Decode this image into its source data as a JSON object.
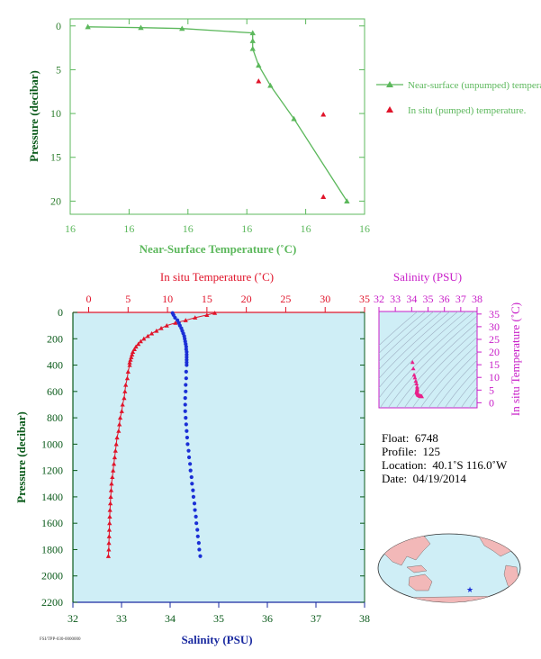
{
  "colors": {
    "green": "#5cb85c",
    "green_dark": "#2f7f2f",
    "red": "#e0142a",
    "blue": "#1a2fd6",
    "magenta": "#c81ec8",
    "pink": "#e8208a",
    "axis_green": "#0a5a1a",
    "axis_blue": "#1a2aa0",
    "panel_bg": "#cfeef6",
    "land": "#f2b8b8",
    "ocean": "#cfeef6"
  },
  "chart_data": [
    {
      "id": "near_surface",
      "type": "line",
      "xlabel": "Near-Surface Temperature (˚C)",
      "ylabel": "Pressure (decibar)",
      "x_tick_labels": [
        "16",
        "16",
        "16",
        "16",
        "16",
        "16"
      ],
      "x_tick_values": [
        16.0,
        16.1,
        16.2,
        16.3,
        16.4,
        16.5
      ],
      "xlim": [
        16.0,
        16.5
      ],
      "y_ticks": [
        0,
        5,
        10,
        15,
        20
      ],
      "ylim": [
        21.5,
        -0.8
      ],
      "y_inverted": true,
      "grid": false,
      "legend_position": "right",
      "series": [
        {
          "name": "Near-surface (unpumped) temperature.",
          "marker": "triangle",
          "x": [
            16.03,
            16.12,
            16.19,
            16.31,
            16.31,
            16.31,
            16.32,
            16.34,
            16.38,
            16.47
          ],
          "y": [
            0.1,
            0.2,
            0.3,
            0.8,
            1.7,
            2.6,
            4.5,
            6.8,
            10.6,
            20.0
          ]
        },
        {
          "name": "In situ (pumped) temperature.",
          "marker": "triangle-points",
          "x": [
            16.32,
            16.43,
            16.43
          ],
          "y": [
            6.3,
            10.1,
            19.5
          ]
        }
      ]
    },
    {
      "id": "profile",
      "type": "line",
      "x2label": "In situ Temperature (˚C)",
      "xlabel": "Salinity (PSU)",
      "ylabel": "Pressure (decibar)",
      "temp_ticks": [
        0,
        5,
        10,
        15,
        20,
        25,
        30,
        35
      ],
      "temp_lim": [
        -2,
        35
      ],
      "sal_ticks": [
        32,
        33,
        34,
        35,
        36,
        37,
        38
      ],
      "sal_lim": [
        32,
        38
      ],
      "y_ticks": [
        0,
        200,
        400,
        600,
        800,
        1000,
        1200,
        1400,
        1600,
        1800,
        2000,
        2200
      ],
      "ylim": [
        2200,
        0
      ],
      "y_inverted": true,
      "series": [
        {
          "name": "temperature",
          "axis": "top",
          "marker": "triangle",
          "pressure": [
            5,
            20,
            40,
            60,
            80,
            100,
            120,
            140,
            160,
            180,
            200,
            220,
            240,
            260,
            280,
            300,
            320,
            340,
            360,
            380,
            400,
            450,
            500,
            550,
            600,
            650,
            700,
            750,
            800,
            850,
            900,
            950,
            1000,
            1050,
            1100,
            1150,
            1200,
            1250,
            1300,
            1350,
            1400,
            1450,
            1500,
            1550,
            1600,
            1650,
            1700,
            1750,
            1800,
            1850
          ],
          "values": [
            16.0,
            15.0,
            13.5,
            12.3,
            11.0,
            9.9,
            9.2,
            8.6,
            8.0,
            7.5,
            7.0,
            6.6,
            6.3,
            6.0,
            5.8,
            5.6,
            5.5,
            5.4,
            5.3,
            5.2,
            5.2,
            5.0,
            4.9,
            4.7,
            4.6,
            4.5,
            4.3,
            4.2,
            4.0,
            3.9,
            3.8,
            3.6,
            3.5,
            3.4,
            3.3,
            3.2,
            3.1,
            3.0,
            2.9,
            2.85,
            2.8,
            2.75,
            2.7,
            2.67,
            2.65,
            2.62,
            2.6,
            2.57,
            2.55,
            2.5
          ]
        },
        {
          "name": "salinity",
          "axis": "bottom",
          "marker": "dot",
          "pressure": [
            5,
            20,
            40,
            60,
            80,
            100,
            120,
            140,
            160,
            180,
            200,
            220,
            240,
            260,
            280,
            300,
            320,
            340,
            360,
            380,
            400,
            450,
            500,
            550,
            600,
            650,
            700,
            750,
            800,
            850,
            900,
            950,
            1000,
            1050,
            1100,
            1150,
            1200,
            1250,
            1300,
            1350,
            1400,
            1450,
            1500,
            1550,
            1600,
            1650,
            1700,
            1750,
            1800,
            1850
          ],
          "values": [
            34.05,
            34.07,
            34.1,
            34.15,
            34.18,
            34.2,
            34.23,
            34.25,
            34.27,
            34.29,
            34.3,
            34.31,
            34.32,
            34.33,
            34.33,
            34.34,
            34.34,
            34.34,
            34.34,
            34.34,
            34.34,
            34.33,
            34.33,
            34.32,
            34.32,
            34.31,
            34.31,
            34.31,
            34.32,
            34.33,
            34.34,
            34.35,
            34.36,
            34.38,
            34.39,
            34.41,
            34.42,
            34.44,
            34.45,
            34.47,
            34.48,
            34.5,
            34.51,
            34.53,
            34.54,
            34.56,
            34.57,
            34.59,
            34.6,
            34.62
          ]
        }
      ]
    },
    {
      "id": "ts_diagram",
      "type": "scatter",
      "xlabel": "Salinity (PSU)",
      "ylabel": "In situ Temperature (˚C)",
      "x_ticks": [
        32,
        33,
        34,
        35,
        36,
        37,
        38
      ],
      "xlim": [
        32,
        38
      ],
      "y_ticks": [
        0,
        5,
        10,
        15,
        20,
        25,
        30,
        35
      ],
      "ylim": [
        -2,
        36
      ],
      "grid": false,
      "density_contours": true,
      "x": [
        34.05,
        34.1,
        34.15,
        34.2,
        34.25,
        34.3,
        34.33,
        34.34,
        34.34,
        34.33,
        34.32,
        34.31,
        34.32,
        34.34,
        34.36,
        34.39,
        34.42,
        34.45,
        34.48,
        34.51,
        34.54,
        34.57,
        34.6,
        34.62,
        34.4,
        34.5,
        34.55
      ],
      "y": [
        16.0,
        13.5,
        11.0,
        9.9,
        8.6,
        7.5,
        6.3,
        5.6,
        5.2,
        4.9,
        4.6,
        4.3,
        4.0,
        3.8,
        3.5,
        3.3,
        3.1,
        2.9,
        2.8,
        2.7,
        2.65,
        2.6,
        2.55,
        2.5,
        3.0,
        2.7,
        2.6
      ]
    }
  ],
  "info": {
    "float_label": "Float:",
    "float_value": "6748",
    "profile_label": "Profile:",
    "profile_value": "125",
    "location_label": "Location:",
    "location_value": "40.1˚S  116.0˚W",
    "date_label": "Date:",
    "date_value": "04/19/2014"
  },
  "footer_code": "FSI/TPP-030-0000000"
}
